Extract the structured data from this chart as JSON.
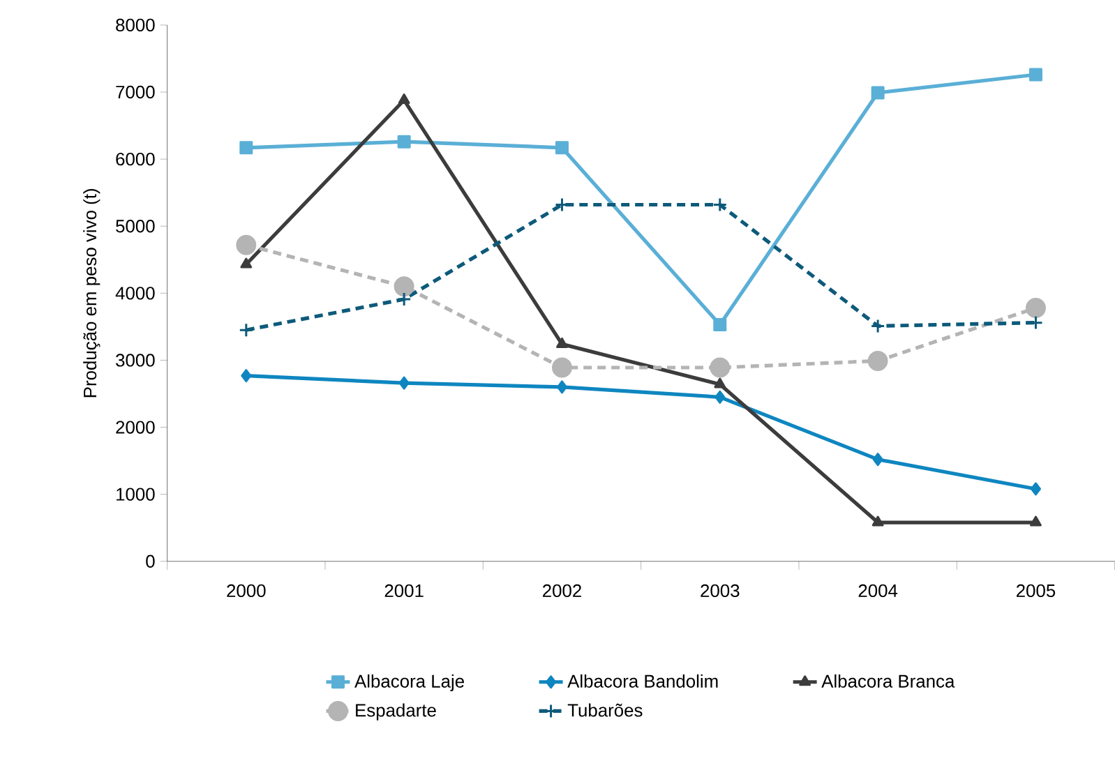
{
  "chart_data": {
    "type": "line",
    "ylabel": "Produção em peso vivo (t)",
    "categories": [
      "2000",
      "2001",
      "2002",
      "2003",
      "2004",
      "2005"
    ],
    "series": [
      {
        "name": "Albacora Laje",
        "color": "#5aafd6",
        "marker": "square",
        "line_style": "solid",
        "values": [
          6170,
          6260,
          6170,
          3530,
          6990,
          7260
        ]
      },
      {
        "name": "Albacora Bandolim",
        "color": "#0e86c0",
        "marker": "diamond",
        "line_style": "solid",
        "values": [
          2770,
          2660,
          2600,
          2450,
          1520,
          1080
        ]
      },
      {
        "name": "Albacora Branca",
        "color": "#3c3c3c",
        "marker": "triangle",
        "line_style": "solid",
        "values": [
          4430,
          6880,
          3240,
          2640,
          580,
          580
        ]
      },
      {
        "name": "Espadarte",
        "color": "#b4b4b4",
        "marker": "circle",
        "line_style": "dashed",
        "values": [
          4720,
          4100,
          2890,
          2890,
          2990,
          3780
        ]
      },
      {
        "name": "Tubarões",
        "color": "#0d5a7a",
        "marker": "cross",
        "line_style": "dashed",
        "values": [
          3450,
          3910,
          5320,
          5320,
          3510,
          3560
        ]
      }
    ],
    "ylim": [
      0,
      8000
    ],
    "yticks": [
      0,
      1000,
      2000,
      3000,
      4000,
      5000,
      6000,
      7000,
      8000
    ],
    "grid": false,
    "legend": "bottom"
  }
}
